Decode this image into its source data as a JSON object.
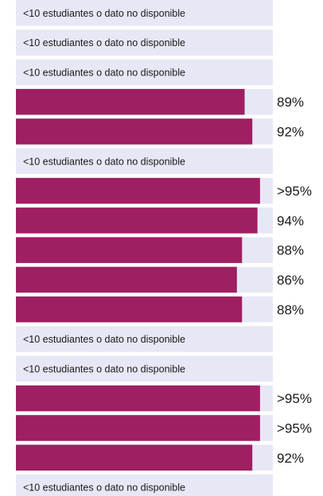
{
  "chart_data": {
    "type": "bar",
    "orientation": "horizontal",
    "bar_color": "#9e1f62",
    "track_color": "#e6e8f5",
    "xlim": [
      0,
      100
    ],
    "na_label": "<10 estudiantes o dato no disponible",
    "rows": [
      {
        "value": null,
        "label": "<10 estudiantes o dato no disponible"
      },
      {
        "value": null,
        "label": "<10 estudiantes o dato no disponible"
      },
      {
        "value": null,
        "label": "<10 estudiantes o dato no disponible"
      },
      {
        "value": 89,
        "label": "89%"
      },
      {
        "value": 92,
        "label": "92%"
      },
      {
        "value": null,
        "label": "<10 estudiantes o dato no disponible"
      },
      {
        "value": 95,
        "label": ">95%"
      },
      {
        "value": 94,
        "label": "94%"
      },
      {
        "value": 88,
        "label": "88%"
      },
      {
        "value": 86,
        "label": "86%"
      },
      {
        "value": 88,
        "label": "88%"
      },
      {
        "value": null,
        "label": "<10 estudiantes o dato no disponible"
      },
      {
        "value": null,
        "label": "<10 estudiantes o dato no disponible"
      },
      {
        "value": 95,
        "label": ">95%"
      },
      {
        "value": 95,
        "label": ">95%"
      },
      {
        "value": 92,
        "label": "92%"
      },
      {
        "value": null,
        "label": "<10 estudiantes o dato no disponible"
      }
    ]
  }
}
